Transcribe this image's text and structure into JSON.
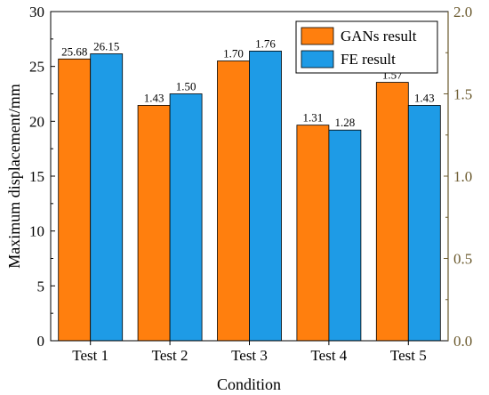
{
  "chart_data": {
    "type": "bar",
    "xlabel": "Condition",
    "ylabel": "Maximum displacement/mm",
    "ylim": [
      0,
      30
    ],
    "y2lim": [
      0,
      2.0
    ],
    "yticks": [
      "0",
      "5",
      "10",
      "15",
      "20",
      "25",
      "30"
    ],
    "y2ticks": [
      "0.0",
      "0.5",
      "1.0",
      "1.5",
      "2.0"
    ],
    "categories": [
      "Test 1",
      "Test 2",
      "Test 3",
      "Test 4",
      "Test 5"
    ],
    "series": [
      {
        "name": "GANs result",
        "color": "#ff7f0e",
        "values": [
          25.68,
          21.45,
          25.5,
          19.65,
          23.55
        ],
        "labels": [
          "25.68",
          "1.43",
          "1.70",
          "1.31",
          "1.57"
        ]
      },
      {
        "name": "FE result",
        "color": "#1e9be6",
        "values": [
          26.15,
          22.5,
          26.4,
          19.2,
          21.45
        ],
        "labels": [
          "26.15",
          "1.50",
          "1.76",
          "1.28",
          "1.43"
        ]
      }
    ],
    "legend_position": "top-right",
    "grid": false
  }
}
